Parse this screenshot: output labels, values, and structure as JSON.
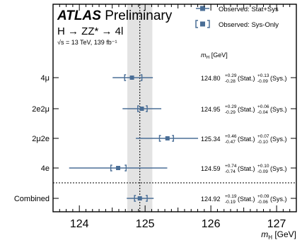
{
  "chart_data": {
    "type": "scatter",
    "title": "ATLAS",
    "subtitle": "Preliminary",
    "process": "H → ZZ* → 4l",
    "energy_label": "√s = 13 TeV, 139 fb⁻¹",
    "xlabel": "m_H [GeV]",
    "xlim": [
      123.6,
      127.3
    ],
    "x_ticks": [
      124,
      125,
      126,
      127
    ],
    "x_tick_labels": [
      "124",
      "125",
      "126",
      "127"
    ],
    "value_column_header": "m_H [GeV]",
    "combined_band": {
      "low": 124.73,
      "high": 125.11
    },
    "combined_line": 124.92,
    "legend": [
      {
        "name": "Observed: Stat+Sys",
        "marker": "filled-square-line"
      },
      {
        "name": "Observed: Sys-Only",
        "marker": "bracket-square"
      }
    ],
    "legend_position": "top-right",
    "colors": {
      "marker": "#4a6e96",
      "band": "#e3e3e3"
    },
    "rows": [
      {
        "label": "4μ",
        "value": 124.8,
        "stat_up": 0.29,
        "stat_down": 0.28,
        "sys_up": 0.13,
        "sys_down": 0.09,
        "display": "124.80",
        "stat_up_str": "+0.29",
        "stat_down_str": "-0.28",
        "sys_up_str": "+0.13",
        "sys_down_str": "-0.09"
      },
      {
        "label": "2e2μ",
        "value": 124.95,
        "stat_up": 0.29,
        "stat_down": 0.29,
        "sys_up": 0.06,
        "sys_down": 0.04,
        "display": "124.95",
        "stat_up_str": "+0.29",
        "stat_down_str": "-0.29",
        "sys_up_str": "+0.06",
        "sys_down_str": "-0.04"
      },
      {
        "label": "2μ2e",
        "value": 125.34,
        "stat_up": 0.46,
        "stat_down": 0.47,
        "sys_up": 0.07,
        "sys_down": 0.1,
        "display": "125.34",
        "stat_up_str": "+0.46",
        "stat_down_str": "-0.47",
        "sys_up_str": "+0.07",
        "sys_down_str": "-0.10"
      },
      {
        "label": "4e",
        "value": 124.59,
        "stat_up": 0.74,
        "stat_down": 0.74,
        "sys_up": 0.1,
        "sys_down": 0.09,
        "display": "124.59",
        "stat_up_str": "+0.74",
        "stat_down_str": "-0.74",
        "sys_up_str": "+0.10",
        "sys_down_str": "-0.09"
      },
      {
        "label": "Combined",
        "value": 124.92,
        "stat_up": 0.19,
        "stat_down": 0.19,
        "sys_up": 0.09,
        "sys_down": 0.06,
        "display": "124.92",
        "stat_up_str": "+0.19",
        "stat_down_str": "-0.19",
        "sys_up_str": "+0.09",
        "sys_down_str": "-0.06"
      }
    ],
    "stat_label": "(Stat.)",
    "sys_label": "(Sys.)"
  }
}
